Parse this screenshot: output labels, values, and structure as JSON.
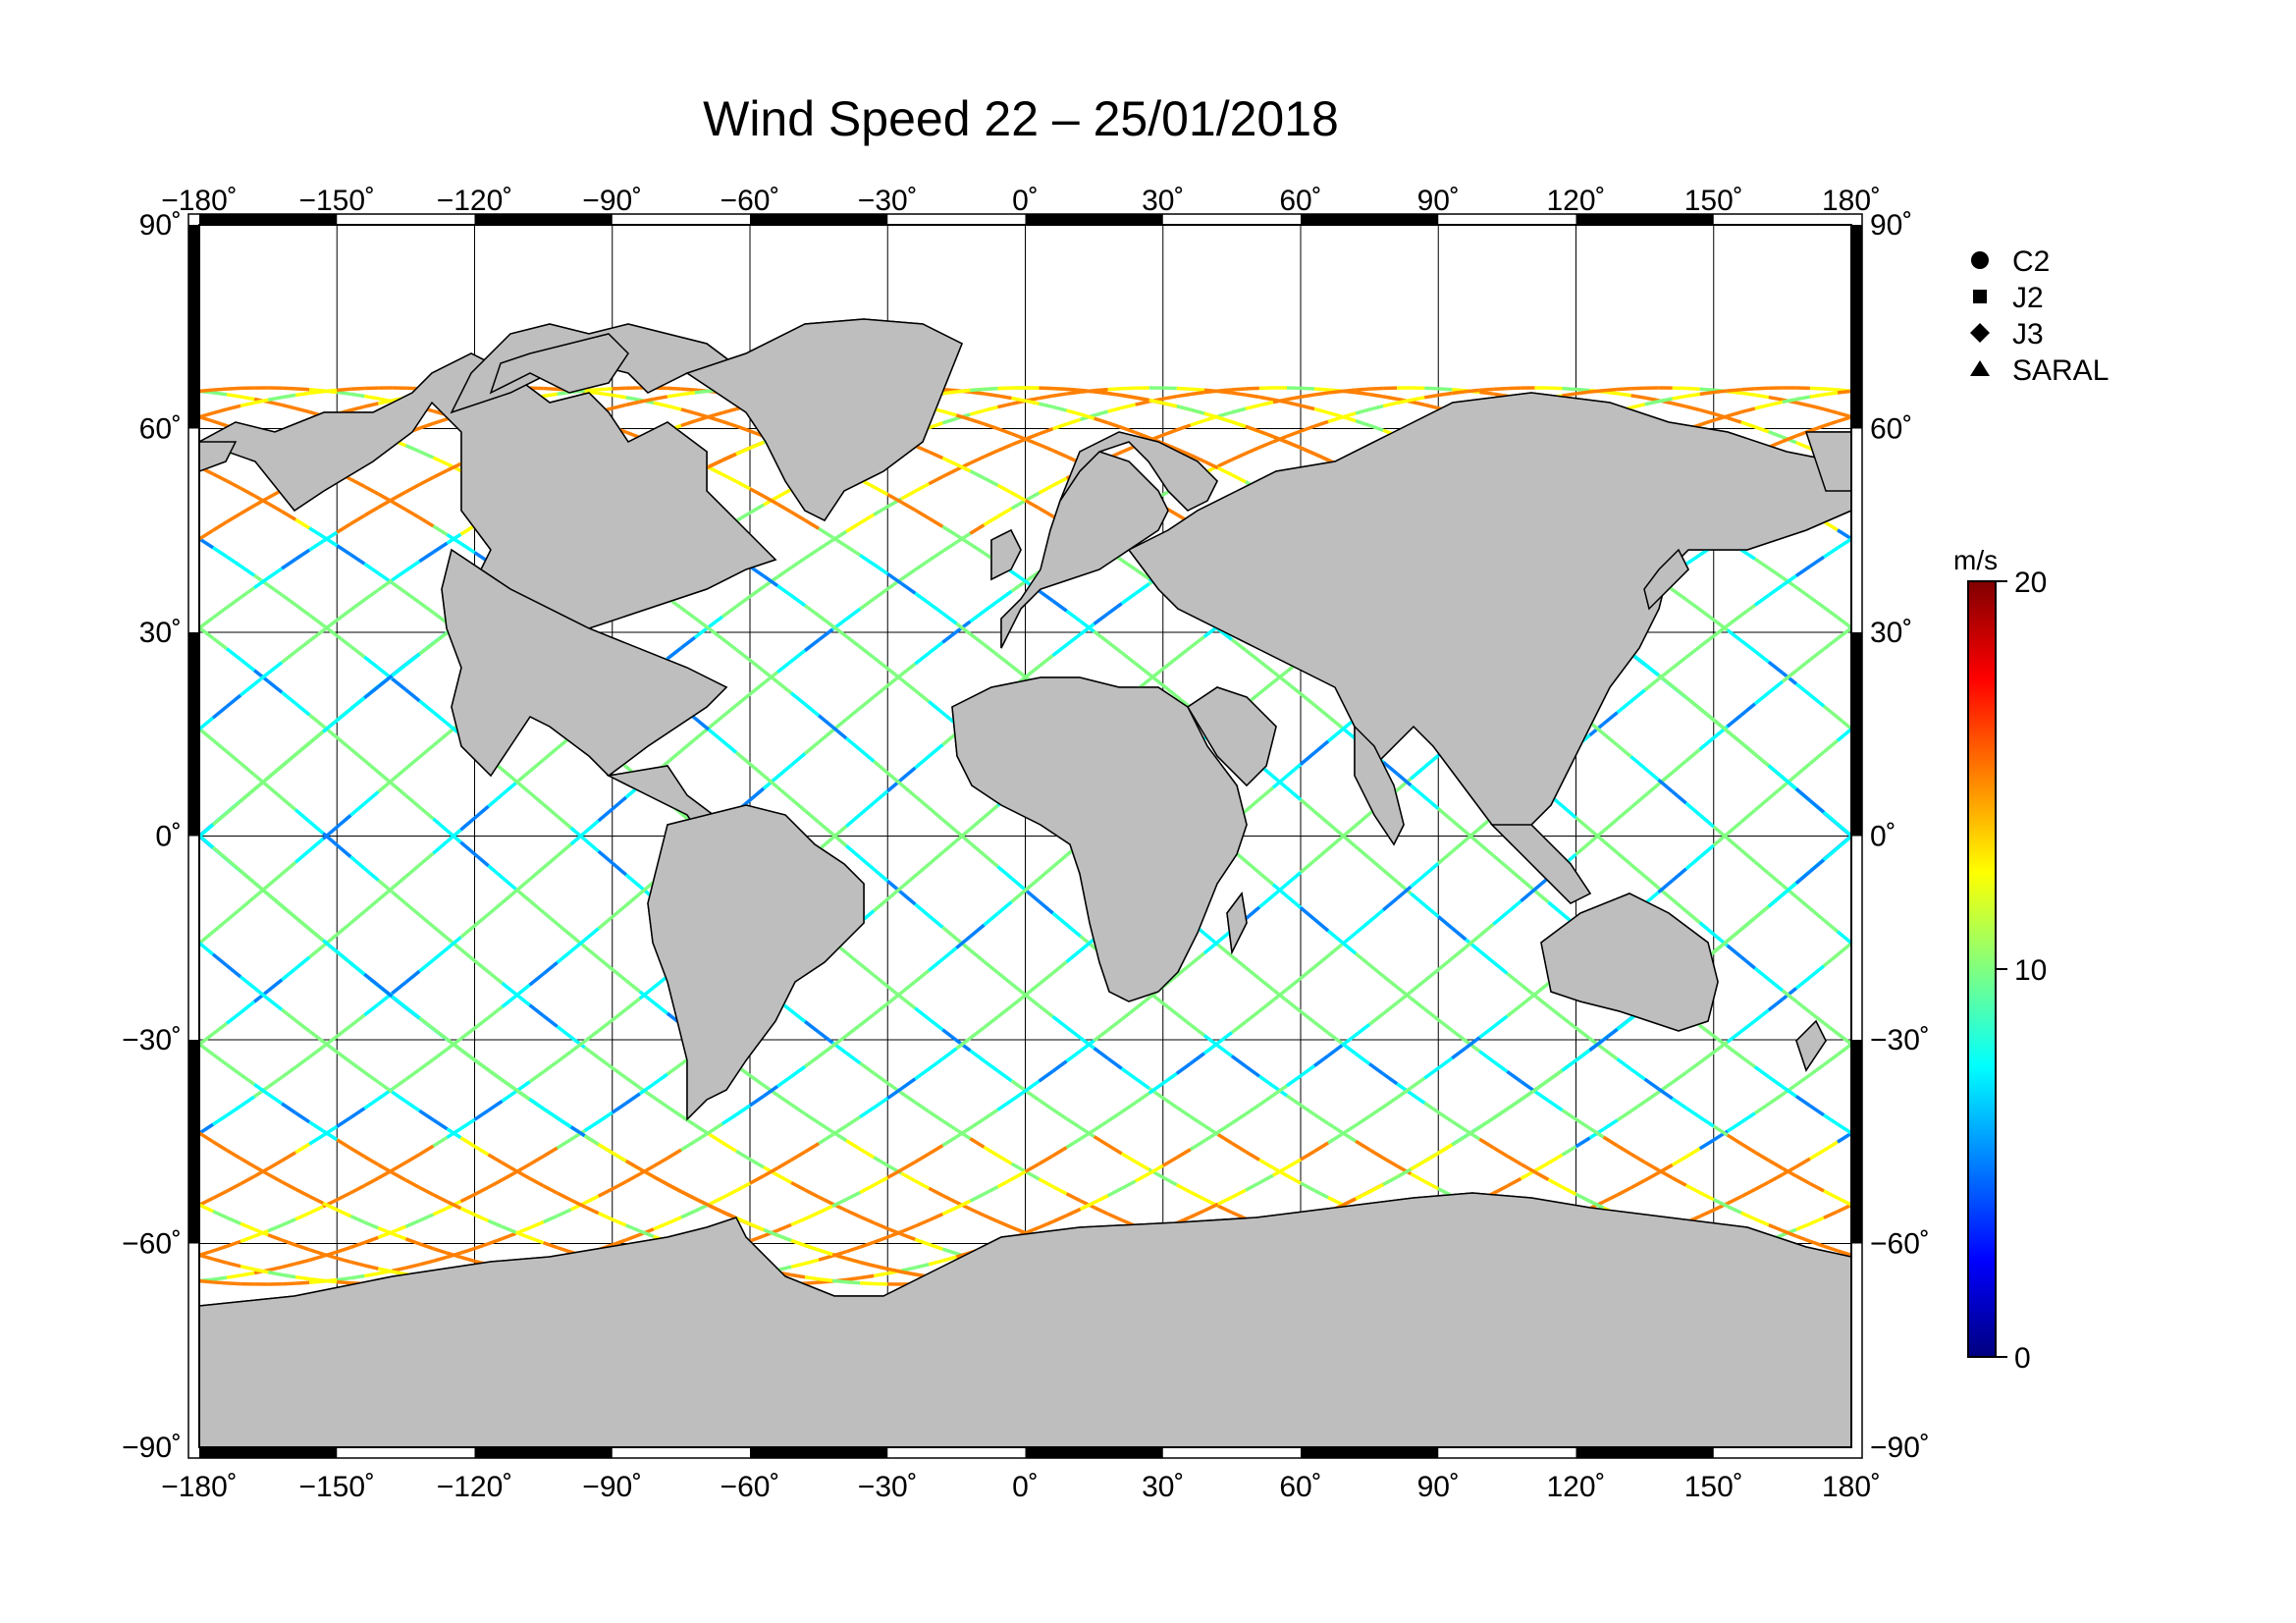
{
  "title": "Wind Speed 22 – 25/01/2018",
  "map": {
    "lon_ticks": [
      -180,
      -150,
      -120,
      -90,
      -60,
      -30,
      0,
      30,
      60,
      90,
      120,
      150,
      180
    ],
    "lat_ticks": [
      90,
      60,
      30,
      0,
      -30,
      -60,
      -90
    ],
    "lon_labels": [
      "−180˚",
      "−150˚",
      "−120˚",
      "−90˚",
      "−60˚",
      "−30˚",
      "0˚",
      "30˚",
      "60˚",
      "90˚",
      "120˚",
      "150˚",
      "180˚"
    ],
    "lat_labels": [
      "90˚",
      "60˚",
      "30˚",
      "0˚",
      "−30˚",
      "−60˚",
      "−90˚"
    ],
    "land_color": "#bebebe",
    "ocean_color": "#ffffff"
  },
  "legend": {
    "items": [
      {
        "label": "C2",
        "icon": "circle-icon"
      },
      {
        "label": "J2",
        "icon": "square-icon"
      },
      {
        "label": "J3",
        "icon": "diamond-icon"
      },
      {
        "label": "SARAL",
        "icon": "triangle-icon"
      }
    ]
  },
  "colorbar": {
    "unit": "m/s",
    "min": 0,
    "max": 20,
    "tick_labels": [
      "20",
      "10",
      "0"
    ],
    "tick_values": [
      20,
      10,
      0
    ],
    "colors": [
      "#000080",
      "#0000ff",
      "#0080ff",
      "#00ffff",
      "#80ff80",
      "#ffff00",
      "#ff8000",
      "#ff0000",
      "#800000"
    ]
  }
}
